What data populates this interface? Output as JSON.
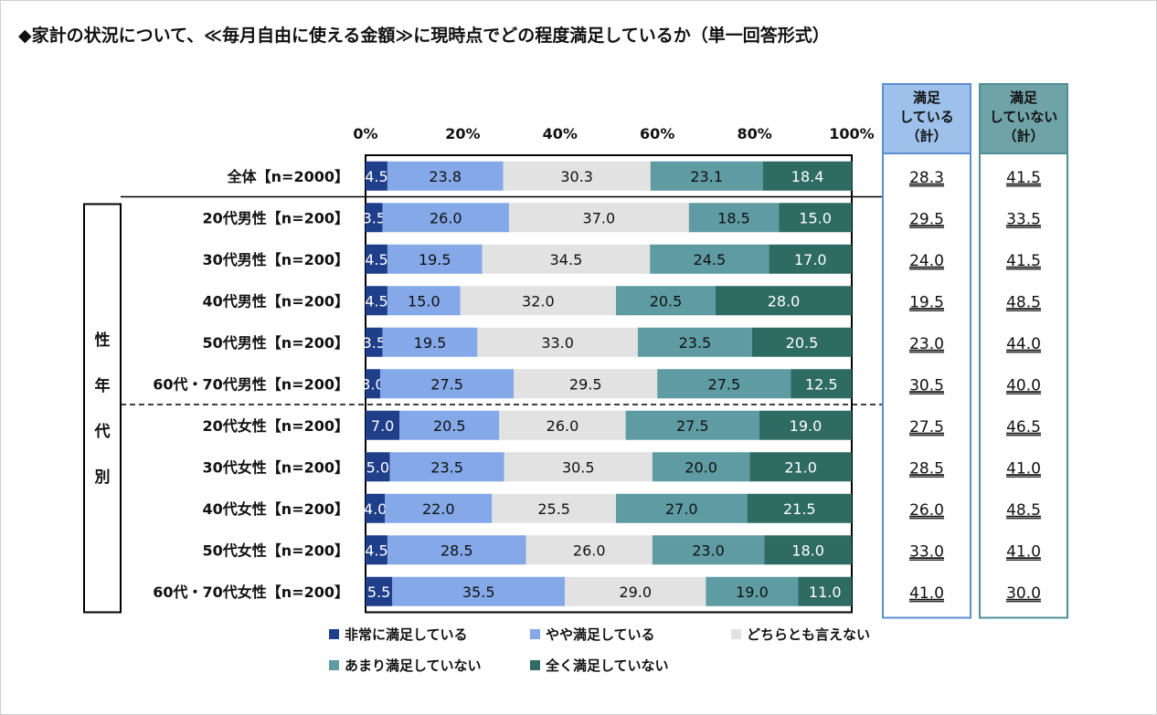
{
  "title": "◆家計の状況について、≪毎月自由に使える金額≫に現時点でどの程度満足しているか（単一回答形式）",
  "chart_data": {
    "type": "bar",
    "orientation": "horizontal",
    "stacked": true,
    "x_ticks": [
      "0%",
      "20%",
      "40%",
      "60%",
      "80%",
      "100%"
    ],
    "xlim": [
      0,
      100
    ],
    "group_label": "性年代別",
    "categories": [
      "全体【n=2000】",
      "20代男性【n=200】",
      "30代男性【n=200】",
      "40代男性【n=200】",
      "50代男性【n=200】",
      "60代・70代男性【n=200】",
      "20代女性【n=200】",
      "30代女性【n=200】",
      "40代女性【n=200】",
      "50代女性【n=200】",
      "60代・70代女性【n=200】"
    ],
    "series": [
      {
        "name": "非常に満足している",
        "color": "#1f3f8a",
        "values": [
          4.5,
          3.5,
          4.5,
          4.5,
          3.5,
          3.0,
          7.0,
          5.0,
          4.0,
          4.5,
          5.5
        ]
      },
      {
        "name": "やや満足している",
        "color": "#84a8e8",
        "values": [
          23.8,
          26.0,
          19.5,
          15.0,
          19.5,
          27.5,
          20.5,
          23.5,
          22.0,
          28.5,
          35.5
        ]
      },
      {
        "name": "どちらとも言えない",
        "color": "#e2e2e2",
        "values": [
          30.3,
          37.0,
          34.5,
          32.0,
          33.0,
          29.5,
          26.0,
          30.5,
          25.5,
          26.0,
          29.0
        ]
      },
      {
        "name": "あまり満足していない",
        "color": "#5e9ba2",
        "values": [
          23.1,
          18.5,
          24.5,
          20.5,
          23.5,
          27.5,
          27.5,
          20.0,
          27.0,
          23.0,
          19.0
        ]
      },
      {
        "name": "全く満足していない",
        "color": "#2e6b62",
        "values": [
          18.4,
          15.0,
          17.0,
          28.0,
          20.5,
          12.5,
          19.0,
          21.0,
          21.5,
          18.0,
          11.0
        ]
      }
    ],
    "summary_columns": [
      {
        "header": [
          "満足",
          "している",
          "（計）"
        ],
        "header_color": "#9dc1ea",
        "border_color": "#5b8fcf",
        "values": [
          "28.3",
          "29.5",
          "24.0",
          "19.5",
          "23.0",
          "30.5",
          "27.5",
          "28.5",
          "26.0",
          "33.0",
          "41.0"
        ]
      },
      {
        "header": [
          "満足",
          "していない",
          "（計）"
        ],
        "header_color": "#6fa3a8",
        "border_color": "#4f8f95",
        "values": [
          "41.5",
          "33.5",
          "41.5",
          "48.5",
          "44.0",
          "40.0",
          "46.5",
          "41.0",
          "48.5",
          "41.0",
          "30.0"
        ]
      }
    ]
  }
}
